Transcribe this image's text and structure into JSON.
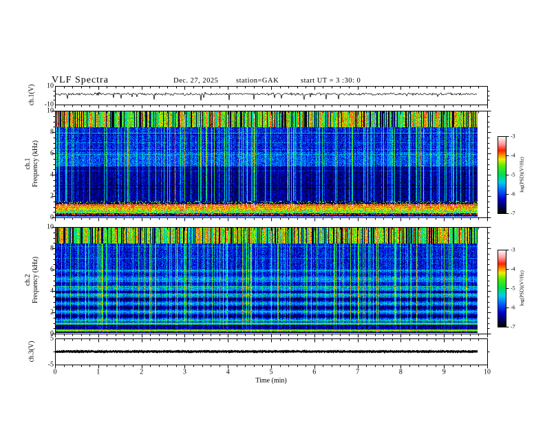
{
  "header": {
    "title": "VLF Spectra",
    "date": "Dec. 27, 2025",
    "station": "station=GAK",
    "start_ut": "start UT =  3 :30: 0"
  },
  "time_axis": {
    "label": "Time  (min)",
    "min": 0,
    "max": 10,
    "tick_labels": [
      "0",
      "1",
      "2",
      "3",
      "4",
      "5",
      "6",
      "7",
      "8",
      "9",
      "10"
    ],
    "minor_step": 0.2,
    "data_end": 9.76
  },
  "colorbar": {
    "label": "log(PSD)(V²/Hz)",
    "min": -7,
    "max": -3,
    "tick_labels": [
      "-3",
      "-4",
      "-5",
      "-6",
      "-7"
    ],
    "gradient": [
      [
        0.0,
        "#000000"
      ],
      [
        0.06,
        "#000040"
      ],
      [
        0.18,
        "#0000cc"
      ],
      [
        0.3,
        "#0066ff"
      ],
      [
        0.4,
        "#00ccee"
      ],
      [
        0.5,
        "#00dd55"
      ],
      [
        0.62,
        "#55ee00"
      ],
      [
        0.7,
        "#eeee00"
      ],
      [
        0.76,
        "#ff8800"
      ],
      [
        0.82,
        "#ff2200"
      ],
      [
        0.9,
        "#ff9999"
      ],
      [
        1.0,
        "#ffffff"
      ]
    ]
  },
  "panels": [
    {
      "ylabel": "ch.1(V)",
      "ytick_labels": [
        "10",
        "-10"
      ],
      "yticks": [
        10,
        -10
      ]
    },
    {
      "ylabel_line1": "ch.1",
      "ylabel_line2": "Frequency (kHz)",
      "ytick_labels": [
        "10",
        "8",
        "6",
        "4",
        "2",
        "0"
      ],
      "yticks": [
        10,
        8,
        6,
        4,
        2,
        0
      ]
    },
    {
      "ylabel_line1": "ch.2",
      "ylabel_line2": "Frequency (kHz)",
      "ytick_labels": [
        "10",
        "8",
        "6",
        "4",
        "2",
        "0"
      ],
      "yticks": [
        10,
        8,
        6,
        4,
        2,
        0
      ]
    },
    {
      "ylabel": "ch.3(V)",
      "ytick_labels": [
        "5",
        "-5"
      ],
      "yticks": [
        5,
        -5
      ]
    }
  ],
  "chart_data": [
    {
      "type": "line",
      "name": "ch.1 voltage waveform",
      "xlabel": "Time (min)",
      "ylabel": "ch.1(V)",
      "x_range": [
        0,
        10
      ],
      "y_range": [
        -10,
        10
      ],
      "data_end": 9.76,
      "baseline": 1.4,
      "noise_amp": 0.9,
      "neg_spike_prob": 0.05,
      "neg_spike_max": 7.5,
      "pos_spike_prob": 0.012,
      "pos_spike_max": 3.5,
      "description": "Noisy trace around +1.5 V with sharp downward spikes to about -8 V"
    },
    {
      "type": "heatmap",
      "name": "ch.1 VLF spectrogram",
      "xlabel": "Time (min)",
      "ylabel": "Frequency (kHz)",
      "zlabel": "log(PSD)(V²/Hz)",
      "x_range": [
        0,
        10
      ],
      "y_range": [
        0,
        10
      ],
      "z_range": [
        -7,
        -3
      ],
      "data_end": 9.76,
      "streaks": {
        "probability": 0.3,
        "max_boost": 1.7,
        "strong_probability": 0.02,
        "strong_boost": 1.2,
        "low_freq_cutoff": 1.2,
        "low_freq_gain": 0.35
      },
      "bands": [
        {
          "f_min": 8.5,
          "f_max": 10.0,
          "mode": "column_striped",
          "black_fraction": 0.22,
          "level_min": -5.4,
          "level_span": 1.7,
          "noise": 0.45
        },
        {
          "f_min": 6.2,
          "f_max": 8.5,
          "mode": "uniform",
          "level": -6.15,
          "noise": 0.38
        },
        {
          "f_min": 4.8,
          "f_max": 6.2,
          "mode": "uniform",
          "level": -5.9,
          "noise": 0.4
        },
        {
          "f_min": 1.5,
          "f_max": 4.8,
          "mode": "uniform",
          "level": -6.5,
          "noise": 0.33
        },
        {
          "f_min": 1.15,
          "f_max": 1.5,
          "mode": "speckle",
          "level_hi": -4.6,
          "level_lo": -6.7,
          "hi_fraction": 0.25,
          "noise": 0.3
        },
        {
          "f_min": 1.0,
          "f_max": 1.15,
          "mode": "uniform",
          "level": -3.7,
          "noise": 0.25
        },
        {
          "f_min": 0.6,
          "f_max": 1.0,
          "mode": "uniform",
          "level": -4.15,
          "noise": 0.3
        },
        {
          "f_min": 0.35,
          "f_max": 0.6,
          "mode": "speckle",
          "level_hi": -4.4,
          "level_lo": -5.3,
          "hi_fraction": 0.6,
          "noise": 0.3
        },
        {
          "f_min": 0.12,
          "f_max": 0.35,
          "mode": "speckle",
          "level_hi": -3.8,
          "level_lo": -6.7,
          "hi_fraction": 0.45,
          "noise": 0.2
        },
        {
          "f_min": 0.0,
          "f_max": 0.12,
          "mode": "uniform",
          "level": -6.8,
          "noise": 0.2
        }
      ]
    },
    {
      "type": "heatmap",
      "name": "ch.2 VLF spectrogram",
      "xlabel": "Time (min)",
      "ylabel": "Frequency (kHz)",
      "zlabel": "log(PSD)(V²/Hz)",
      "x_range": [
        0,
        10
      ],
      "y_range": [
        0,
        10
      ],
      "z_range": [
        -7,
        -3
      ],
      "data_end": 9.76,
      "streaks": {
        "probability": 0.3,
        "max_boost": 1.7,
        "strong_probability": 0.02,
        "strong_boost": 1.2,
        "low_freq_cutoff": 1.2,
        "low_freq_gain": 0.35
      },
      "bands": [
        {
          "f_min": 8.5,
          "f_max": 10.0,
          "mode": "column_striped",
          "black_fraction": 0.22,
          "level_min": -5.4,
          "level_span": 1.7,
          "noise": 0.45
        },
        {
          "f_min": 6.0,
          "f_max": 8.5,
          "mode": "uniform",
          "level": -6.2,
          "noise": 0.38
        },
        {
          "f_min": 4.0,
          "f_max": 6.0,
          "mode": "banded",
          "level": -5.95,
          "noise": 0.35,
          "band_amp": 0.35,
          "band_period": 0.9
        },
        {
          "f_min": 1.0,
          "f_max": 4.0,
          "mode": "banded",
          "level": -6.15,
          "noise": 0.33,
          "band_amp": 0.55,
          "band_period": 0.8
        },
        {
          "f_min": 0.8,
          "f_max": 1.0,
          "mode": "uniform",
          "level": -5.0,
          "noise": 0.45
        },
        {
          "f_min": 0.35,
          "f_max": 0.8,
          "mode": "uniform",
          "level": -6.5,
          "noise": 0.3
        },
        {
          "f_min": 0.22,
          "f_max": 0.35,
          "mode": "uniform",
          "level": -4.7,
          "noise": 0.3
        },
        {
          "f_min": 0.1,
          "f_max": 0.22,
          "mode": "uniform",
          "level": -3.9,
          "noise": 0.3
        },
        {
          "f_min": 0.0,
          "f_max": 0.1,
          "mode": "uniform",
          "level": -6.8,
          "noise": 0.2
        }
      ]
    },
    {
      "type": "line",
      "name": "ch.3 voltage waveform",
      "xlabel": "Time (min)",
      "ylabel": "ch.3(V)",
      "x_range": [
        0,
        10
      ],
      "y_range": [
        -5,
        5
      ],
      "data_end": 9.76,
      "value": 0.0,
      "jitter": 0.35,
      "description": "Flat thick trace at ~0 V for the full record"
    }
  ]
}
